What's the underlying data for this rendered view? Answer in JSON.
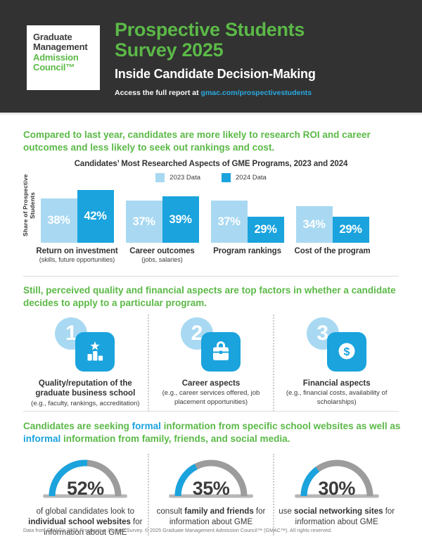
{
  "header": {
    "logo_line1": "Graduate",
    "logo_line2": "Management",
    "logo_line3": "Admission",
    "logo_line4": "Council™",
    "title_line1": "Prospective Students",
    "title_line2": "Survey 2025",
    "subtitle": "Inside Candidate Decision-Making",
    "access_prefix": "Access the full report at ",
    "access_link": "gmac.com/prospectivestudents"
  },
  "colors": {
    "green": "#5bb947",
    "blue": "#1aa3dd",
    "light_blue": "#a9d9f2",
    "header_bg": "#323232",
    "gauge_track": "#9c9c9c",
    "gauge_baseline": "#b7b7b7"
  },
  "section1": {
    "headline": "Compared to last year, candidates are more likely to research ROI and career outcomes and less likely to seek out rankings and cost."
  },
  "chart_data": [
    {
      "type": "bar",
      "title": "Candidates’ Most Researched Aspects of GME Programs, 2023 and 2024",
      "ylabel": "Share of Prospective Students",
      "categories": [
        "Return on investment",
        "Career outcomes",
        "Program rankings",
        "Cost of the program"
      ],
      "category_notes": [
        "(skills, future opportunities)",
        "(jobs, salaries)",
        "",
        ""
      ],
      "series": [
        {
          "name": "2023 Data",
          "color": "#a9d9f2",
          "values": [
            38,
            37,
            37,
            34
          ]
        },
        {
          "name": "2024 Data",
          "color": "#1aa3dd",
          "values": [
            42,
            39,
            29,
            29
          ]
        }
      ],
      "unit": "%",
      "value_labels": "inside",
      "legend_position": "top",
      "grid": false
    },
    {
      "type": "pie",
      "subtype": "semicircle-gauge",
      "unit": "%",
      "values": [
        52,
        35,
        30
      ],
      "track_color": "#9c9c9c",
      "fill_color": "#1aa3dd",
      "captions": [
        [
          {
            "t": "of global candidates look to "
          },
          {
            "t": "individual school websites",
            "b": true
          },
          {
            "t": " for information about GME"
          }
        ],
        [
          {
            "t": "consult "
          },
          {
            "t": "family and friends",
            "b": true
          },
          {
            "t": " for information about GME"
          }
        ],
        [
          {
            "t": "use "
          },
          {
            "t": "social networking sites",
            "b": true
          },
          {
            "t": " for information about GME"
          }
        ]
      ]
    }
  ],
  "section2": {
    "headline": "Still, perceived quality and financial aspects are top factors in whether a candidate decides to apply to a particular program.",
    "items": [
      {
        "number": "1",
        "icon": "podium-star-icon",
        "label": "Quality/reputation of the graduate business school",
        "note": "(e.g., faculty, rankings, accreditation)"
      },
      {
        "number": "2",
        "icon": "briefcase-icon",
        "label": "Career aspects",
        "note": "(e.g., career services offered, job placement opportunities)"
      },
      {
        "number": "3",
        "icon": "dollar-icon",
        "label": "Financial aspects",
        "note": "(e.g., financial costs, availability of scholarships)"
      }
    ]
  },
  "section3": {
    "headline_segments": [
      {
        "t": "Candidates are seeking "
      },
      {
        "t": "formal",
        "c": "#1aa3dd"
      },
      {
        "t": " information from specific school websites as well as "
      },
      {
        "t": "informal",
        "c": "#1aa3dd"
      },
      {
        "t": " information from family, friends, and social media."
      }
    ]
  },
  "footer": "Data from GMAC’s 2025 Prospective Student Survey. © 2025 Graduate Management Admission Council™ (GMAC™). All rights reserved."
}
